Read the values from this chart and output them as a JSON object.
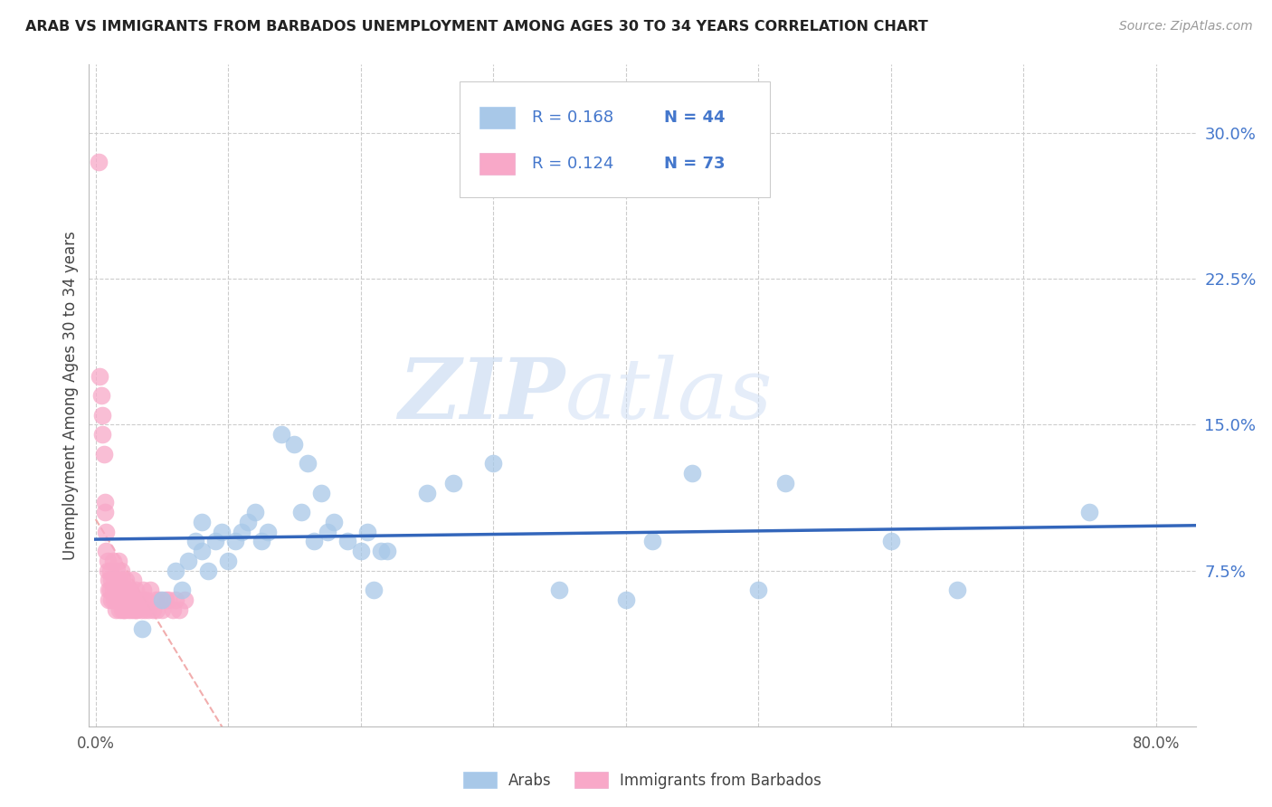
{
  "title": "ARAB VS IMMIGRANTS FROM BARBADOS UNEMPLOYMENT AMONG AGES 30 TO 34 YEARS CORRELATION CHART",
  "source": "Source: ZipAtlas.com",
  "ylabel": "Unemployment Among Ages 30 to 34 years",
  "ytick_labels": [
    "7.5%",
    "15.0%",
    "22.5%",
    "30.0%"
  ],
  "ytick_values": [
    0.075,
    0.15,
    0.225,
    0.3
  ],
  "xlim": [
    -0.005,
    0.83
  ],
  "ylim": [
    -0.005,
    0.335
  ],
  "watermark_zip": "ZIP",
  "watermark_atlas": "atlas",
  "legend_arab_R": "0.168",
  "legend_arab_N": "44",
  "legend_barb_R": "0.124",
  "legend_barb_N": "73",
  "arab_color": "#a8c8e8",
  "barb_color": "#f8a8c8",
  "trendline_arab_color": "#3366bb",
  "trendline_barb_color": "#ee9999",
  "legend_blue": "#4477cc",
  "legend_pink": "#dd4488",
  "arab_points_x": [
    0.035,
    0.05,
    0.06,
    0.065,
    0.07,
    0.075,
    0.08,
    0.08,
    0.085,
    0.09,
    0.095,
    0.1,
    0.105,
    0.11,
    0.115,
    0.12,
    0.125,
    0.13,
    0.14,
    0.15,
    0.155,
    0.16,
    0.165,
    0.17,
    0.175,
    0.18,
    0.19,
    0.2,
    0.205,
    0.21,
    0.215,
    0.22,
    0.25,
    0.27,
    0.3,
    0.35,
    0.4,
    0.42,
    0.45,
    0.5,
    0.52,
    0.6,
    0.65,
    0.75
  ],
  "arab_points_y": [
    0.045,
    0.06,
    0.075,
    0.065,
    0.08,
    0.09,
    0.085,
    0.1,
    0.075,
    0.09,
    0.095,
    0.08,
    0.09,
    0.095,
    0.1,
    0.105,
    0.09,
    0.095,
    0.145,
    0.14,
    0.105,
    0.13,
    0.09,
    0.115,
    0.095,
    0.1,
    0.09,
    0.085,
    0.095,
    0.065,
    0.085,
    0.085,
    0.115,
    0.12,
    0.13,
    0.065,
    0.06,
    0.09,
    0.125,
    0.065,
    0.12,
    0.09,
    0.065,
    0.105
  ],
  "barb_points_x": [
    0.002,
    0.003,
    0.004,
    0.005,
    0.005,
    0.006,
    0.007,
    0.007,
    0.008,
    0.008,
    0.009,
    0.009,
    0.01,
    0.01,
    0.01,
    0.011,
    0.011,
    0.012,
    0.012,
    0.013,
    0.013,
    0.014,
    0.014,
    0.015,
    0.015,
    0.016,
    0.016,
    0.017,
    0.017,
    0.018,
    0.018,
    0.019,
    0.019,
    0.02,
    0.02,
    0.021,
    0.021,
    0.022,
    0.022,
    0.023,
    0.023,
    0.024,
    0.025,
    0.025,
    0.026,
    0.027,
    0.027,
    0.028,
    0.028,
    0.029,
    0.03,
    0.03,
    0.031,
    0.032,
    0.033,
    0.034,
    0.035,
    0.036,
    0.037,
    0.038,
    0.04,
    0.041,
    0.043,
    0.045,
    0.046,
    0.048,
    0.05,
    0.053,
    0.055,
    0.058,
    0.06,
    0.063,
    0.067
  ],
  "barb_points_y": [
    0.285,
    0.175,
    0.165,
    0.155,
    0.145,
    0.135,
    0.11,
    0.105,
    0.095,
    0.085,
    0.08,
    0.075,
    0.07,
    0.065,
    0.06,
    0.075,
    0.065,
    0.07,
    0.06,
    0.08,
    0.065,
    0.07,
    0.06,
    0.065,
    0.055,
    0.075,
    0.06,
    0.08,
    0.065,
    0.07,
    0.055,
    0.075,
    0.06,
    0.07,
    0.055,
    0.065,
    0.055,
    0.065,
    0.055,
    0.07,
    0.06,
    0.065,
    0.065,
    0.055,
    0.065,
    0.06,
    0.055,
    0.07,
    0.06,
    0.055,
    0.065,
    0.055,
    0.055,
    0.06,
    0.06,
    0.055,
    0.06,
    0.065,
    0.055,
    0.06,
    0.055,
    0.065,
    0.055,
    0.06,
    0.055,
    0.06,
    0.055,
    0.06,
    0.06,
    0.055,
    0.06,
    0.055,
    0.06
  ]
}
